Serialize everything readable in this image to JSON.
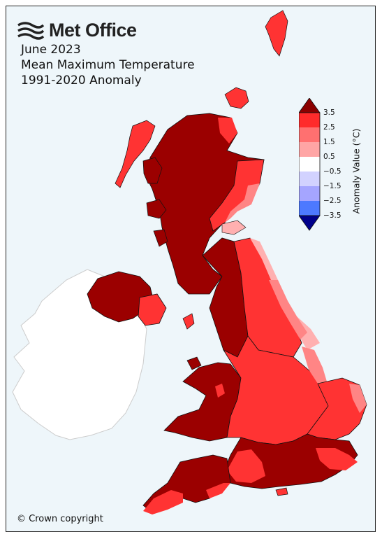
{
  "brand": {
    "name": "Met Office",
    "logo_icon": "met-office-wave-icon"
  },
  "title": {
    "line1": "June 2023",
    "line2": "Mean Maximum Temperature",
    "line3": "1991-2020 Anomaly"
  },
  "legend": {
    "title": "Anomaly Value (°C)",
    "ticks": [
      "3.5",
      "2.5",
      "1.5",
      "0.5",
      "−0.5",
      "−1.5",
      "−2.5",
      "−3.5"
    ],
    "colors": {
      "above_3_5": "#8b0000",
      "2_5_to_3_5": "#ff2b2b",
      "1_5_to_2_5": "#ff7070",
      "0_5_to_1_5": "#ffa5a5",
      "0_to_0_5": "#ffd0d0",
      "neutral": "#ffffff",
      "minus_1_5_to_minus_0_5": "#d2d2ff",
      "minus_2_5_to_minus_1_5": "#a5a5ff",
      "minus_3_5_to_minus_2_5": "#4d79ff",
      "below_minus_3_5": "#00008b"
    }
  },
  "map_colors": {
    "sea": "#eef6fa",
    "ireland": "#ffffff",
    "dark_red": "#9b0000",
    "red": "#ff3333",
    "light_red": "#ff8585",
    "pink": "#ffb0b0",
    "border": "#111111"
  },
  "copyright": "© Crown copyright"
}
